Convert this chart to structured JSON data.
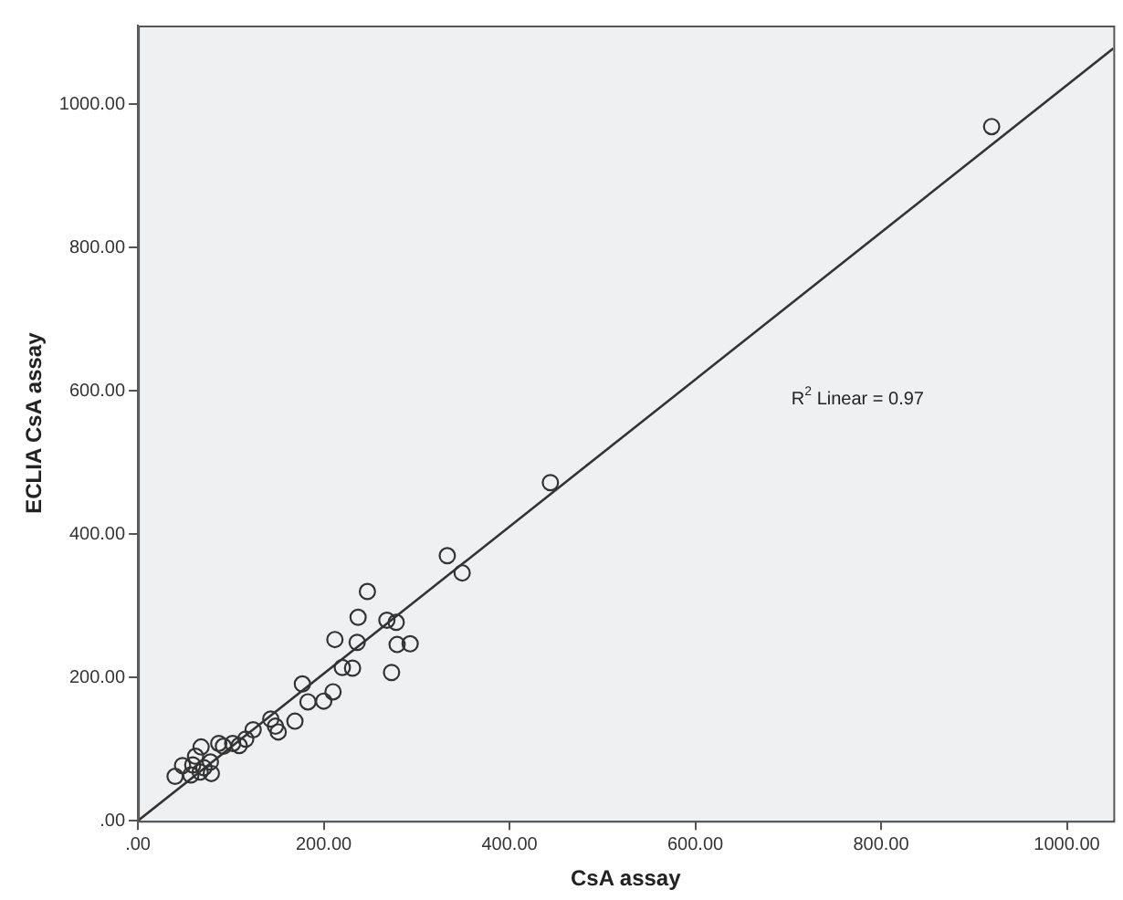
{
  "chart_data": {
    "type": "scatter",
    "xlabel": "CsA assay",
    "ylabel": "ECLIA CsA assay",
    "annotations": [
      "R$^{2}$ Linear = 0.97"
    ],
    "xlim": [
      0,
      1050
    ],
    "ylim": [
      0,
      1110
    ],
    "xticks": [
      {
        "value": 0,
        "label": ".00"
      },
      {
        "value": 200,
        "label": "200.00"
      },
      {
        "value": 400,
        "label": "400.00"
      },
      {
        "value": 600,
        "label": "600.00"
      },
      {
        "value": 800,
        "label": "800.00"
      },
      {
        "value": 1000,
        "label": "1000.00"
      }
    ],
    "yticks": [
      {
        "value": 0,
        "label": ".00"
      },
      {
        "value": 200,
        "label": "200.00"
      },
      {
        "value": 400,
        "label": "400.00"
      },
      {
        "value": 600,
        "label": "600.00"
      },
      {
        "value": 800,
        "label": "800.00"
      },
      {
        "value": 1000,
        "label": "1000.00"
      }
    ],
    "grid": false,
    "legend": false,
    "series": [
      {
        "marker": "circle",
        "color": "#333333",
        "x": [
          919,
          444,
          333,
          349,
          247,
          237,
          268,
          278,
          212,
          236,
          279,
          293,
          220,
          231,
          273,
          177,
          210,
          183,
          200,
          169,
          143,
          148,
          151,
          124,
          116,
          109,
          102,
          87,
          92,
          68,
          78,
          62,
          59,
          48,
          67,
          57,
          40,
          79,
          71
        ],
        "values": [
          969,
          472,
          370,
          346,
          320,
          284,
          280,
          277,
          253,
          249,
          246,
          247,
          214,
          213,
          207,
          191,
          180,
          166,
          167,
          139,
          142,
          132,
          124,
          127,
          114,
          105,
          108,
          108,
          104,
          103,
          82,
          90,
          78,
          77,
          68,
          64,
          62,
          66,
          74
        ]
      },
      {
        "type": "line",
        "marker": "none",
        "color": "#333333",
        "x": [
          0,
          1050
        ],
        "values": [
          0,
          1078
        ]
      }
    ]
  }
}
